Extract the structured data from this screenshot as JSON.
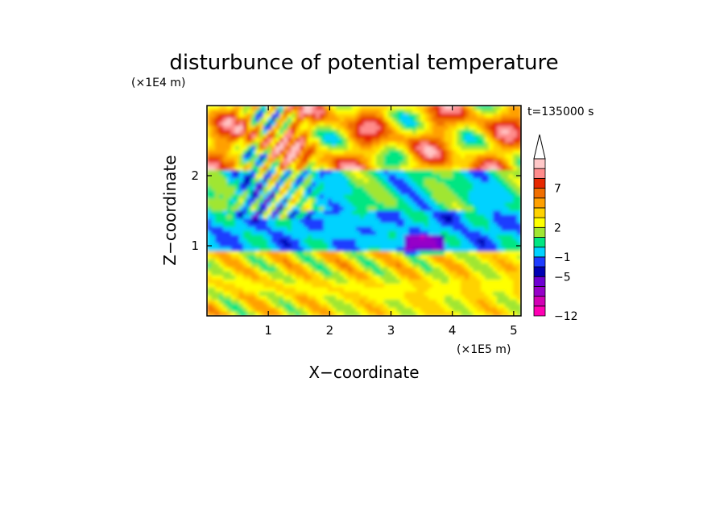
{
  "chart_data": {
    "type": "heatmap",
    "title": "disturbunce of potential temperature",
    "xlabel": "X−coordinate",
    "ylabel": "Z−coordinate",
    "x_scale_label": "(×1E5 m)",
    "y_scale_label": "(×1E4 m)",
    "time_label": "t=135000 s",
    "xlim": [
      0,
      5.12
    ],
    "ylim": [
      0,
      3.0
    ],
    "x_ticks": [
      1,
      2,
      3,
      4,
      5
    ],
    "y_ticks": [
      1,
      2
    ],
    "x_tick_labels": [
      "1",
      "2",
      "3",
      "4",
      "5"
    ],
    "y_tick_labels": [
      "1",
      "2"
    ],
    "grid": false,
    "colorbar": {
      "placement": "right",
      "extend": "max",
      "levels": [
        {
          "color": "#ff00b4"
        },
        {
          "color": "#d200b4"
        },
        {
          "color": "#9600c8"
        },
        {
          "color": "#6e00d2"
        },
        {
          "color": "#0000b4"
        },
        {
          "color": "#1e3cff"
        },
        {
          "color": "#00d2ff"
        },
        {
          "color": "#00e682"
        },
        {
          "color": "#a0e632"
        },
        {
          "color": "#ffff00"
        },
        {
          "color": "#ffd200"
        },
        {
          "color": "#ffa000"
        },
        {
          "color": "#f06e00"
        },
        {
          "color": "#e62800"
        },
        {
          "color": "#ff8c8c"
        },
        {
          "color": "#ffc8c8"
        }
      ],
      "tick_labels": [
        "7",
        "2",
        "−1",
        "−5",
        "−12"
      ]
    }
  }
}
